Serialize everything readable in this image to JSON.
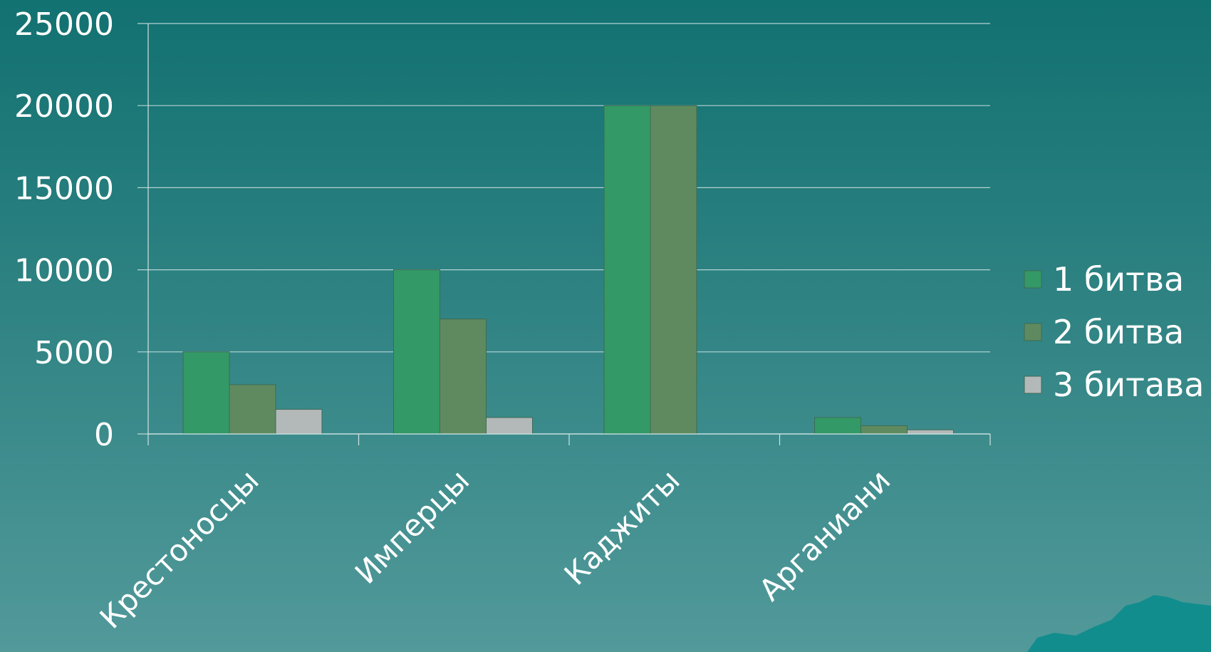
{
  "chart_data": {
    "type": "bar",
    "categories": [
      "Крестоносцы",
      "Имперцы",
      "Каджиты",
      "Арганиани"
    ],
    "series": [
      {
        "name": "1 битва",
        "color": "#339966",
        "values": [
          5000,
          10000,
          20000,
          1000
        ]
      },
      {
        "name": "2 битва",
        "color": "#5f8a5f",
        "values": [
          3000,
          7000,
          20000,
          500
        ]
      },
      {
        "name": "3 битава",
        "color": "#b3b8b8",
        "values": [
          1500,
          1000,
          0,
          250
        ]
      }
    ],
    "ylim": [
      0,
      25000
    ],
    "yticks": [
      "0",
      "5000",
      "10000",
      "15000",
      "20000",
      "25000"
    ],
    "grid": true,
    "legend_position": "right"
  },
  "colors": {
    "background_top": "#127171",
    "background_bottom": "#52999a",
    "gridline": "#cfe3e3",
    "text": "#ffffff"
  }
}
